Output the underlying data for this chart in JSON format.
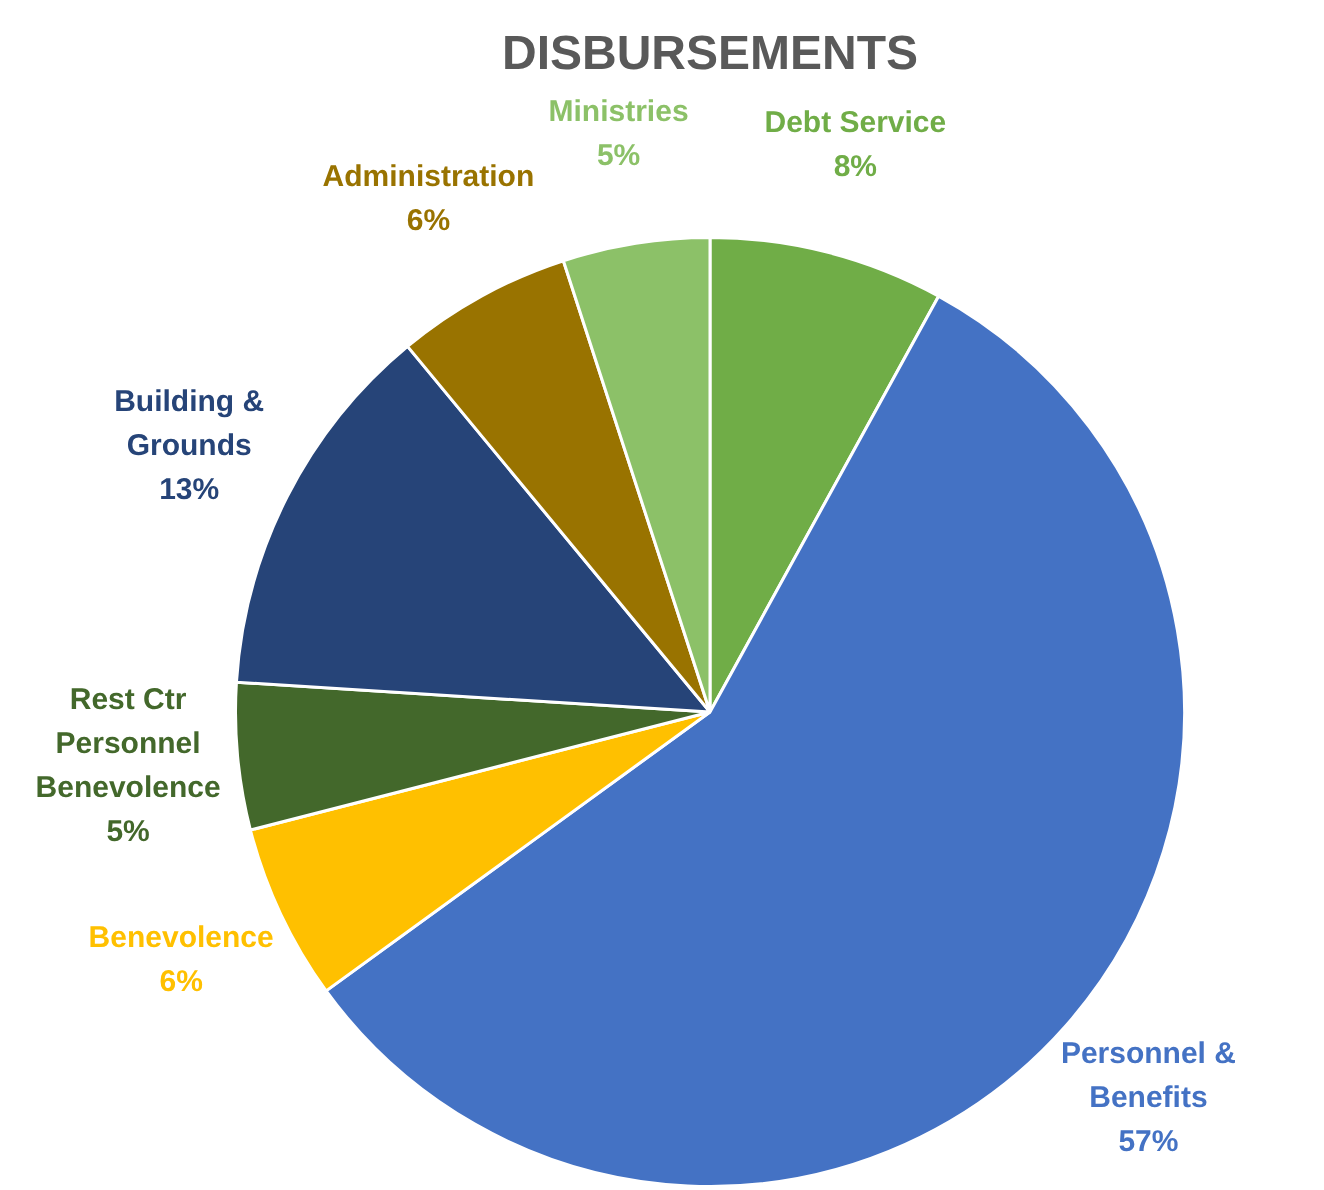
{
  "chart_data": {
    "type": "pie",
    "title": "DISBURSEMENTS",
    "categories": [
      "Debt Service",
      "Personnel &\nBenefits",
      "Benevolence",
      "Rest Ctr\nPersonnel\nBenevolence",
      "Building &\nGrounds",
      "Administration",
      "Ministries"
    ],
    "values": [
      8,
      57,
      6,
      5,
      13,
      6,
      5
    ],
    "colors": [
      "#70ad47",
      "#4472c4",
      "#ffc000",
      "#43682b",
      "#264478",
      "#997300",
      "#8cc168"
    ],
    "value_labels": [
      "8%",
      "57%",
      "6%",
      "5%",
      "13%",
      "6%",
      "5%"
    ],
    "legend": false
  }
}
